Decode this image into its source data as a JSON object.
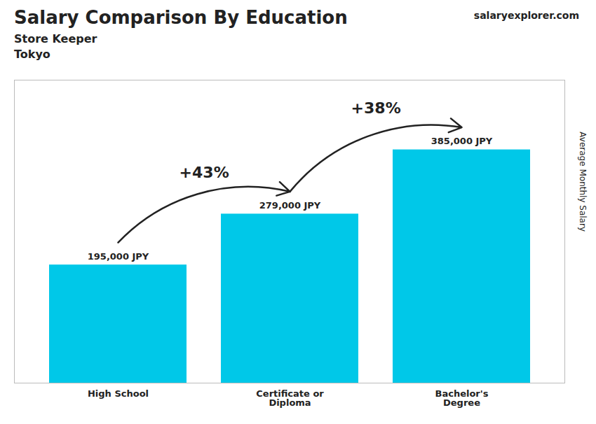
{
  "chart_data": {
    "type": "bar",
    "title": "Salary Comparison By Education",
    "subtitle": [
      "Store Keeper",
      "Tokyo"
    ],
    "watermark": "salaryexplorer.com",
    "ylabel": "Average Monthly Salary",
    "categories": [
      "High School",
      "Certificate or\nDiploma",
      "Bachelor's\nDegree"
    ],
    "values": [
      195000,
      279000,
      385000
    ],
    "value_labels": [
      "195,000 JPY",
      "279,000 JPY",
      "385,000 JPY"
    ],
    "data_labels": true,
    "color": "#00c8e8",
    "ylim": [
      0,
      500000
    ],
    "tick_labels": "x",
    "grid": false,
    "annotations": [
      {
        "text": "+43%",
        "from": "High School",
        "to": "Certificate or\nDiploma"
      },
      {
        "text": "+38%",
        "from": "Certificate or\nDiploma",
        "to": "Bachelor's\nDegree"
      }
    ]
  }
}
